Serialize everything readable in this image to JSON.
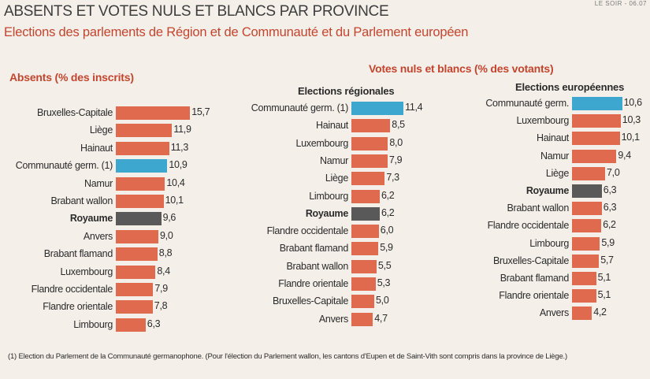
{
  "stamp": "LE SOIR - 06.07",
  "title": "ABSENTS ET VOTES NULS ET BLANCS PAR PROVINCE",
  "subtitle": "Elections des parlements de Région et de Communauté et du Parlement européen",
  "panels": {
    "absents_head": "Absents (% des inscrits)",
    "votes_head": "Votes nuls et blancs (% des votants)",
    "regionales_head": "Elections régionales",
    "europeennes_head": "Elections européennes"
  },
  "colors": {
    "province": "#e06a4e",
    "communaute": "#3ea7cf",
    "royaume": "#595959"
  },
  "footnote": "(1) Election du Parlement de la Communauté germanophone. (Pour l'élection du Parlement wallon, les cantons d'Eupen et de Saint-Vith sont compris dans la province de Liège.)",
  "chart_data": [
    {
      "type": "bar",
      "title": "Absents (% des inscrits)",
      "categories": [
        "Bruxelles-Capitale",
        "Liège",
        "Hainaut",
        "Communauté germ. (1)",
        "Namur",
        "Brabant wallon",
        "Royaume",
        "Anvers",
        "Brabant flamand",
        "Luxembourg",
        "Flandre occidentale",
        "Flandre orientale",
        "Limbourg"
      ],
      "values": [
        15.7,
        11.9,
        11.3,
        10.9,
        10.4,
        10.1,
        9.6,
        9.0,
        8.8,
        8.4,
        7.9,
        7.8,
        6.3
      ],
      "labels": [
        "15,7",
        "11,9",
        "11,3",
        "10,9",
        "10,4",
        "10,1",
        "9,6",
        "9,0",
        "8,8",
        "8,4",
        "7,9",
        "7,8",
        "6,3"
      ],
      "kinds": [
        "province",
        "province",
        "province",
        "communaute",
        "province",
        "province",
        "royaume",
        "province",
        "province",
        "province",
        "province",
        "province",
        "province"
      ],
      "orientation": "horizontal"
    },
    {
      "type": "bar",
      "title": "Elections régionales",
      "categories": [
        "Communauté germ. (1)",
        "Hainaut",
        "Luxembourg",
        "Namur",
        "Liège",
        "Limbourg",
        "Royaume",
        "Flandre occidentale",
        "Brabant flamand",
        "Brabant wallon",
        "Flandre orientale",
        "Bruxelles-Capitale",
        "Anvers"
      ],
      "values": [
        11.4,
        8.5,
        8.0,
        7.9,
        7.3,
        6.2,
        6.2,
        6.0,
        5.9,
        5.5,
        5.3,
        5.0,
        4.7
      ],
      "labels": [
        "11,4",
        "8,5",
        "8,0",
        "7,9",
        "7,3",
        "6,2",
        "6,2",
        "6,0",
        "5,9",
        "5,5",
        "5,3",
        "5,0",
        "4,7"
      ],
      "kinds": [
        "communaute",
        "province",
        "province",
        "province",
        "province",
        "province",
        "royaume",
        "province",
        "province",
        "province",
        "province",
        "province",
        "province"
      ],
      "orientation": "horizontal"
    },
    {
      "type": "bar",
      "title": "Elections européennes",
      "categories": [
        "Communauté germ.",
        "Luxembourg",
        "Hainaut",
        "Namur",
        "Liège",
        "Royaume",
        "Brabant wallon",
        "Flandre occidentale",
        "Limbourg",
        "Bruxelles-Capitale",
        "Brabant flamand",
        "Flandre orientale",
        "Anvers"
      ],
      "values": [
        10.6,
        10.3,
        10.1,
        9.4,
        7.0,
        6.3,
        6.3,
        6.2,
        5.9,
        5.7,
        5.1,
        5.1,
        4.2
      ],
      "labels": [
        "10,6",
        "10,3",
        "10,1",
        "9,4",
        "7,0",
        "6,3",
        "6,3",
        "6,2",
        "5,9",
        "5,7",
        "5,1",
        "5,1",
        "4,2"
      ],
      "kinds": [
        "communaute",
        "province",
        "province",
        "province",
        "province",
        "royaume",
        "province",
        "province",
        "province",
        "province",
        "province",
        "province",
        "province"
      ],
      "orientation": "horizontal"
    }
  ]
}
